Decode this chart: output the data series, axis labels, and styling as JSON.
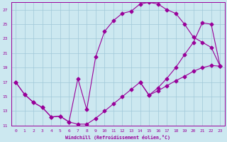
{
  "xlabel": "Windchill (Refroidissement éolien,°C)",
  "bg_color": "#cce8f0",
  "grid_color": "#a0c8d8",
  "line_color": "#990099",
  "xlim": [
    -0.5,
    23.5
  ],
  "ylim": [
    11,
    28
  ],
  "xticks": [
    0,
    1,
    2,
    3,
    4,
    5,
    6,
    7,
    8,
    9,
    10,
    11,
    12,
    13,
    14,
    15,
    16,
    17,
    18,
    19,
    20,
    21,
    22,
    23
  ],
  "yticks": [
    11,
    13,
    15,
    17,
    19,
    21,
    23,
    25,
    27
  ],
  "series1_x": [
    0,
    1,
    2,
    3,
    4,
    5,
    6,
    7,
    8,
    9,
    10,
    11,
    12,
    13,
    14,
    15,
    16,
    17,
    18,
    19,
    20,
    21,
    22,
    23
  ],
  "series1_y": [
    17.0,
    15.3,
    14.2,
    13.5,
    12.2,
    12.3,
    11.5,
    11.2,
    11.2,
    12.0,
    13.0,
    14.0,
    15.0,
    16.0,
    17.0,
    15.2,
    15.8,
    16.5,
    17.2,
    17.8,
    18.5,
    19.0,
    19.3,
    19.2
  ],
  "series2_x": [
    0,
    1,
    2,
    3,
    4,
    5,
    6,
    7,
    8,
    9,
    10,
    11,
    12,
    13,
    14,
    15,
    16,
    17,
    18,
    19,
    20,
    21,
    22,
    23
  ],
  "series2_y": [
    17.0,
    15.3,
    14.2,
    13.5,
    12.2,
    12.3,
    11.5,
    17.5,
    13.2,
    20.5,
    24.0,
    25.5,
    26.5,
    26.8,
    27.8,
    28.0,
    27.8,
    27.0,
    26.5,
    25.0,
    23.2,
    22.5,
    21.8,
    19.2
  ],
  "series3_x": [
    14,
    15,
    16,
    17,
    18,
    19,
    20,
    21,
    22,
    23
  ],
  "series3_y": [
    17.0,
    15.2,
    16.2,
    17.5,
    19.0,
    20.8,
    22.5,
    25.2,
    25.0,
    19.2
  ]
}
